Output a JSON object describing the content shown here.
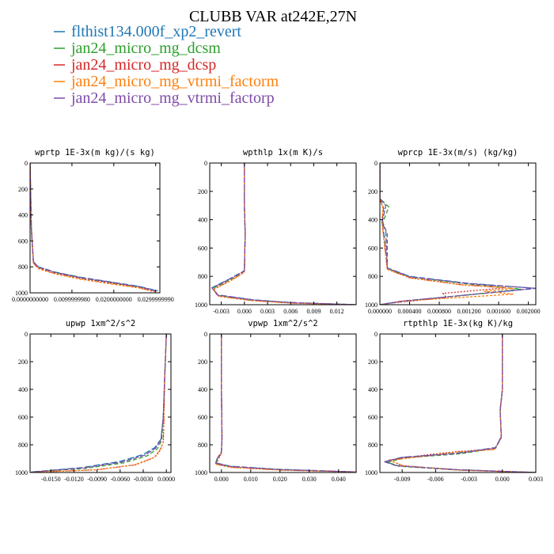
{
  "figure": {
    "title": "CLUBB VAR at242E,27N",
    "colors": [
      "#1f77b4",
      "#2ca02c",
      "#d62728",
      "#ff7f0e",
      "#7e4ba8"
    ],
    "legend": [
      {
        "label": "flthist134.000f_xp2_revert",
        "color": "#1f77b4"
      },
      {
        "label": "jan24_micro_mg_dcsm",
        "color": "#2ca02c"
      },
      {
        "label": "jan24_micro_mg_dcsp",
        "color": "#d62728"
      },
      {
        "label": "jan24_micro_mg_vtrmi_factorm",
        "color": "#ff7f0e"
      },
      {
        "label": "jan24_micro_mg_vtrmi_factorp",
        "color": "#7e4ba8"
      }
    ]
  },
  "chart_data": [
    {
      "type": "line",
      "title": "wprtp  1E-3x(m kg)/(s kg)",
      "xlim": [
        0,
        0.031
      ],
      "ylim": [
        1000,
        0
      ],
      "xticks": [
        "0.0000000000",
        "0.0099999980",
        "0.0200000000",
        "0.0299999990"
      ],
      "xtick_values": [
        0,
        0.009999998,
        0.02,
        0.029999999
      ],
      "yticks": [
        "0",
        "200",
        "400",
        "600",
        "800",
        "1000"
      ],
      "ytick_values": [
        0,
        200,
        400,
        600,
        800,
        1000
      ],
      "series": [
        {
          "color": "#1f77b4",
          "x": [
            0,
            0.0003,
            0.0008,
            0.002,
            0.006,
            0.012,
            0.02,
            0.026,
            0.0305
          ],
          "y": [
            0,
            500,
            760,
            800,
            840,
            880,
            920,
            950,
            985
          ]
        },
        {
          "color": "#2ca02c",
          "x": [
            0,
            0.0003,
            0.0008,
            0.002,
            0.006,
            0.012,
            0.02,
            0.026,
            0.0303
          ],
          "y": [
            0,
            500,
            765,
            805,
            845,
            885,
            925,
            955,
            988
          ]
        },
        {
          "color": "#d62728",
          "x": [
            0,
            0.0003,
            0.0008,
            0.002,
            0.006,
            0.012,
            0.02,
            0.026,
            0.0298
          ],
          "y": [
            0,
            500,
            770,
            810,
            850,
            890,
            930,
            960,
            990
          ]
        },
        {
          "color": "#ff7f0e",
          "x": [
            0,
            0.0003,
            0.0008,
            0.002,
            0.006,
            0.012,
            0.02,
            0.026,
            0.0296
          ],
          "y": [
            0,
            500,
            775,
            815,
            855,
            895,
            935,
            962,
            992
          ]
        },
        {
          "color": "#7e4ba8",
          "x": [
            0,
            0.0003,
            0.0008,
            0.002,
            0.006,
            0.012,
            0.02,
            0.026,
            0.0302
          ],
          "y": [
            0,
            500,
            762,
            802,
            842,
            882,
            922,
            952,
            986
          ]
        }
      ]
    },
    {
      "type": "line",
      "title": "wpthlp  1x(m K)/s",
      "xlim": [
        -0.0045,
        0.0145
      ],
      "ylim": [
        1000,
        0
      ],
      "xticks": [
        "-0.003",
        "0.000",
        "0.003",
        "0.006",
        "0.009",
        "0.012"
      ],
      "xtick_values": [
        -0.003,
        0,
        0.003,
        0.006,
        0.009,
        0.012
      ],
      "yticks": [
        "0",
        "200",
        "400",
        "600",
        "800",
        "1000"
      ],
      "ytick_values": [
        0,
        200,
        400,
        600,
        800,
        1000
      ],
      "series": [
        {
          "color": "#1f77b4",
          "x": [
            0,
            0,
            0.0001,
            0,
            -0.002,
            -0.0042,
            -0.0035,
            0.001,
            0.006,
            0.0145
          ],
          "y": [
            0,
            300,
            500,
            760,
            820,
            880,
            930,
            965,
            985,
            1000
          ]
        },
        {
          "color": "#2ca02c",
          "x": [
            0,
            0,
            0.0001,
            0,
            -0.0019,
            -0.0041,
            -0.0034,
            0.001,
            0.006,
            0.0145
          ],
          "y": [
            0,
            300,
            500,
            765,
            825,
            885,
            935,
            967,
            986,
            1000
          ]
        },
        {
          "color": "#d62728",
          "x": [
            0,
            0,
            0.0001,
            0,
            -0.0018,
            -0.004,
            -0.0033,
            0.001,
            0.006,
            0.0145
          ],
          "y": [
            0,
            300,
            500,
            770,
            830,
            890,
            940,
            970,
            988,
            1000
          ]
        },
        {
          "color": "#ff7f0e",
          "x": [
            0,
            0,
            0.0001,
            0,
            -0.0018,
            -0.004,
            -0.0033,
            0.001,
            0.006,
            0.0145
          ],
          "y": [
            0,
            300,
            500,
            772,
            832,
            892,
            942,
            972,
            989,
            1000
          ]
        },
        {
          "color": "#7e4ba8",
          "x": [
            0,
            0,
            0.0001,
            0,
            -0.002,
            -0.0042,
            -0.0035,
            0.001,
            0.006,
            0.0145
          ],
          "y": [
            0,
            300,
            500,
            762,
            822,
            882,
            932,
            966,
            985,
            1000
          ]
        }
      ]
    },
    {
      "type": "line",
      "title": "wprcp  1E-3x(m/s) (kg/kg)",
      "xlim": [
        0,
        0.0021
      ],
      "ylim": [
        1000,
        0
      ],
      "xticks": [
        "0.000000",
        "0.000400",
        "0.000800",
        "0.001200",
        "0.001600",
        "0.002000"
      ],
      "xtick_values": [
        0,
        0.0004,
        0.0008,
        0.0012,
        0.0016,
        0.002
      ],
      "yticks": [
        "0",
        "200",
        "400",
        "600",
        "800",
        "1000"
      ],
      "ytick_values": [
        0,
        200,
        400,
        600,
        800,
        1000
      ],
      "series": [
        {
          "color": "#1f77b4",
          "x": [
            0,
            0,
            5e-05,
            3e-05,
            6e-05,
            0.0001,
            0.0004,
            0.0012,
            0.0021,
            0.0012,
            0.0003,
            0
          ],
          "y": [
            0,
            250,
            320,
            420,
            520,
            740,
            800,
            850,
            885,
            930,
            975,
            1000
          ]
        },
        {
          "color": "#2ca02c",
          "x": [
            0,
            0,
            0.00012,
            4e-05,
            0.0001,
            0.0001,
            0.0004,
            0.0012,
            0.0019,
            0.0011,
            0.0003,
            0
          ],
          "y": [
            0,
            250,
            310,
            420,
            500,
            745,
            805,
            855,
            890,
            935,
            978,
            1000
          ]
        },
        {
          "color": "#d62728",
          "x": [
            0,
            0,
            4e-05,
            3e-05,
            5e-05,
            0.0001,
            0.0004,
            0.0011,
            0.0017,
            0.00085,
            0.0009,
            0.0002,
            0
          ],
          "y": [
            0,
            250,
            320,
            420,
            520,
            750,
            810,
            860,
            880,
            920,
            950,
            985,
            1000
          ]
        },
        {
          "color": "#ff7f0e",
          "x": [
            0,
            0,
            4e-05,
            3e-05,
            5e-05,
            0.0001,
            0.0004,
            0.0011,
            0.0018,
            0.0014,
            0.0018,
            0.0003,
            0
          ],
          "y": [
            0,
            250,
            320,
            420,
            520,
            750,
            810,
            860,
            885,
            905,
            925,
            975,
            1000
          ]
        },
        {
          "color": "#7e4ba8",
          "x": [
            0,
            0,
            8e-05,
            3e-05,
            8e-05,
            0.0001,
            0.0004,
            0.0012,
            0.0021,
            0.0012,
            0.0003,
            0
          ],
          "y": [
            0,
            250,
            300,
            420,
            480,
            742,
            802,
            852,
            884,
            930,
            975,
            1000
          ]
        }
      ]
    },
    {
      "type": "line",
      "title": "upwp  1xm^2/s^2",
      "xlim": [
        -0.0177,
        0.0006
      ],
      "ylim": [
        1000,
        0
      ],
      "xticks": [
        "-0.0150",
        "-0.0120",
        "-0.0090",
        "-0.0060",
        "-0.0030",
        "0.0000"
      ],
      "xtick_values": [
        -0.015,
        -0.012,
        -0.009,
        -0.006,
        -0.003,
        0
      ],
      "yticks": [
        "0",
        "200",
        "400",
        "600",
        "800",
        "1000"
      ],
      "ytick_values": [
        0,
        200,
        400,
        600,
        800,
        1000
      ],
      "series": [
        {
          "color": "#1f77b4",
          "x": [
            0,
            -0.0002,
            -0.0004,
            -0.0007,
            -0.0015,
            -0.003,
            -0.006,
            -0.011,
            -0.0177
          ],
          "y": [
            0,
            300,
            600,
            760,
            820,
            870,
            920,
            965,
            997
          ]
        },
        {
          "color": "#2ca02c",
          "x": [
            0,
            -0.0002,
            -0.0004,
            -0.0006,
            -0.0012,
            -0.0025,
            -0.0055,
            -0.0105,
            -0.0175
          ],
          "y": [
            0,
            300,
            600,
            770,
            830,
            880,
            930,
            970,
            997
          ]
        },
        {
          "color": "#d62728",
          "x": [
            0,
            -0.0002,
            -0.0003,
            -0.0004,
            -0.0008,
            -0.0015,
            -0.004,
            -0.009,
            -0.017
          ],
          "y": [
            0,
            300,
            600,
            780,
            840,
            890,
            945,
            980,
            998
          ]
        },
        {
          "color": "#ff7f0e",
          "x": [
            0,
            -0.0002,
            -0.0003,
            -0.0004,
            -0.0009,
            -0.0016,
            -0.0042,
            -0.0092,
            -0.0172
          ],
          "y": [
            0,
            300,
            600,
            782,
            842,
            892,
            946,
            981,
            998
          ]
        },
        {
          "color": "#7e4ba8",
          "x": [
            0,
            -0.0002,
            -0.0004,
            -0.0007,
            -0.0014,
            -0.0028,
            -0.0058,
            -0.0108,
            -0.0176
          ],
          "y": [
            0,
            300,
            600,
            765,
            825,
            875,
            925,
            967,
            997
          ]
        }
      ]
    },
    {
      "type": "line",
      "title": "vpwp  1xm^2/s^2",
      "xlim": [
        -0.004,
        0.046
      ],
      "ylim": [
        1000,
        0
      ],
      "xticks": [
        "0.000",
        "0.010",
        "0.020",
        "0.030",
        "0.040"
      ],
      "xtick_values": [
        0,
        0.01,
        0.02,
        0.03,
        0.04
      ],
      "yticks": [
        "0",
        "200",
        "400",
        "600",
        "800",
        "1000"
      ],
      "ytick_values": [
        0,
        200,
        400,
        600,
        800,
        1000
      ],
      "series": [
        {
          "color": "#1f77b4",
          "x": [
            0,
            0,
            0.0002,
            0,
            -0.0015,
            -0.002,
            0.003,
            0.02,
            0.046
          ],
          "y": [
            0,
            400,
            750,
            850,
            900,
            930,
            955,
            978,
            996
          ]
        },
        {
          "color": "#2ca02c",
          "x": [
            0,
            0,
            0.0002,
            0,
            -0.0014,
            -0.0019,
            0.003,
            0.02,
            0.046
          ],
          "y": [
            0,
            400,
            750,
            855,
            905,
            935,
            958,
            980,
            996
          ]
        },
        {
          "color": "#d62728",
          "x": [
            0,
            0,
            0.0002,
            0,
            -0.0012,
            -0.0017,
            0.003,
            0.02,
            0.046
          ],
          "y": [
            0,
            400,
            750,
            860,
            910,
            940,
            962,
            982,
            996
          ]
        },
        {
          "color": "#ff7f0e",
          "x": [
            0,
            0,
            0.0002,
            0,
            -0.0012,
            -0.0017,
            0.003,
            0.02,
            0.046
          ],
          "y": [
            0,
            400,
            750,
            862,
            912,
            942,
            963,
            983,
            996
          ]
        },
        {
          "color": "#7e4ba8",
          "x": [
            0,
            0,
            0.0002,
            0,
            -0.0015,
            -0.002,
            0.003,
            0.02,
            0.046
          ],
          "y": [
            0,
            400,
            750,
            852,
            902,
            932,
            956,
            979,
            996
          ]
        }
      ]
    },
    {
      "type": "line",
      "title": "rtpthlp  1E-3x(kg K)/kg",
      "xlim": [
        -0.011,
        0.003
      ],
      "ylim": [
        1000,
        0
      ],
      "xticks": [
        "-0.009",
        "-0.006",
        "-0.003",
        "0.000",
        "0.003"
      ],
      "xtick_values": [
        -0.009,
        -0.006,
        -0.003,
        0,
        0.003
      ],
      "yticks": [
        "0",
        "200",
        "400",
        "600",
        "800",
        "1000"
      ],
      "ytick_values": [
        0,
        200,
        400,
        600,
        800,
        1000
      ],
      "series": [
        {
          "color": "#1f77b4",
          "x": [
            0,
            0,
            -0.0002,
            -0.0001,
            -0.0006,
            -0.004,
            -0.009,
            -0.0105,
            -0.0095,
            -0.004,
            0.003
          ],
          "y": [
            0,
            400,
            550,
            740,
            820,
            860,
            890,
            920,
            950,
            980,
            1000
          ]
        },
        {
          "color": "#2ca02c",
          "x": [
            0,
            0,
            -0.0002,
            -0.0001,
            -0.0006,
            -0.0038,
            -0.0088,
            -0.0103,
            -0.0093,
            -0.004,
            0.003
          ],
          "y": [
            0,
            400,
            550,
            745,
            825,
            865,
            895,
            925,
            955,
            982,
            1000
          ]
        },
        {
          "color": "#d62728",
          "x": [
            0,
            0,
            -0.0002,
            -0.0001,
            -0.0007,
            -0.0042,
            -0.0065,
            -0.0102,
            -0.009,
            -0.004,
            0.003
          ],
          "y": [
            0,
            400,
            550,
            750,
            830,
            850,
            870,
            910,
            950,
            982,
            1000
          ]
        },
        {
          "color": "#ff7f0e",
          "x": [
            0,
            0,
            -0.0002,
            -0.0001,
            -0.0007,
            -0.0045,
            -0.0062,
            -0.0101,
            -0.0089,
            -0.004,
            0.003
          ],
          "y": [
            0,
            400,
            550,
            752,
            835,
            855,
            875,
            912,
            952,
            983,
            1000
          ]
        },
        {
          "color": "#7e4ba8",
          "x": [
            0,
            0,
            -0.0002,
            -0.0001,
            -0.0006,
            -0.004,
            -0.009,
            -0.0106,
            -0.0095,
            -0.004,
            0.003
          ],
          "y": [
            0,
            400,
            550,
            742,
            822,
            862,
            892,
            922,
            952,
            980,
            1000
          ]
        }
      ]
    }
  ]
}
